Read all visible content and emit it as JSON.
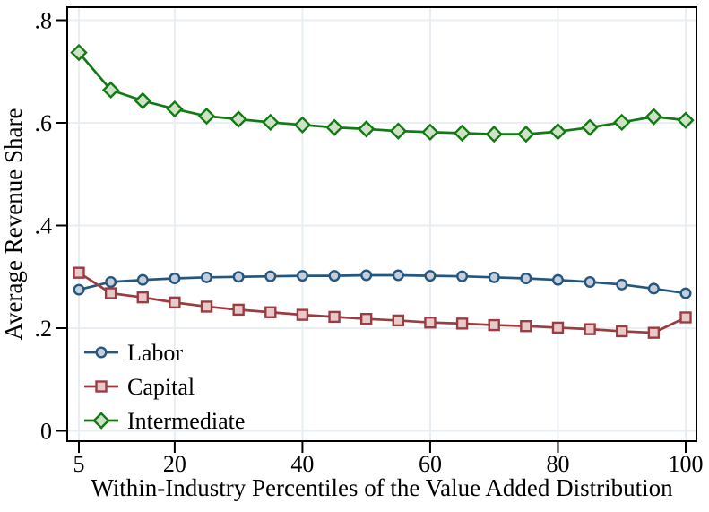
{
  "chart_data": {
    "type": "line",
    "title": "",
    "xlabel": "Within-Industry Percentiles of the Value Added Distribution",
    "ylabel": "Average Revenue Share",
    "x": [
      5,
      10,
      15,
      20,
      25,
      30,
      35,
      40,
      45,
      50,
      55,
      60,
      65,
      70,
      75,
      80,
      85,
      90,
      95,
      100
    ],
    "xticks": [
      5,
      20,
      40,
      60,
      80,
      100
    ],
    "xtick_labels": [
      "5",
      "20",
      "40",
      "60",
      "80",
      "100"
    ],
    "yticks": [
      0,
      0.2,
      0.4,
      0.6,
      0.8
    ],
    "ytick_labels": [
      "0",
      ".2",
      ".4",
      ".6",
      ".8"
    ],
    "xlim": [
      3.2,
      101.7
    ],
    "ylim": [
      -0.02,
      0.827
    ],
    "grid": true,
    "legend_position": "bottom-left-inside",
    "series": [
      {
        "name": "Labor",
        "marker": "circle",
        "line_color": "#25567e",
        "marker_fill": "#c3cede",
        "values": [
          0.275,
          0.29,
          0.294,
          0.297,
          0.299,
          0.3,
          0.301,
          0.302,
          0.302,
          0.303,
          0.303,
          0.302,
          0.301,
          0.299,
          0.297,
          0.294,
          0.29,
          0.285,
          0.277,
          0.268
        ]
      },
      {
        "name": "Capital",
        "marker": "square",
        "line_color": "#9c3c41",
        "marker_fill": "#e7caca",
        "values": [
          0.308,
          0.268,
          0.26,
          0.25,
          0.242,
          0.236,
          0.231,
          0.226,
          0.222,
          0.218,
          0.215,
          0.211,
          0.209,
          0.206,
          0.204,
          0.201,
          0.198,
          0.194,
          0.191,
          0.221
        ]
      },
      {
        "name": "Intermediate",
        "marker": "diamond",
        "line_color": "#127a12",
        "marker_fill": "#cfe2c8",
        "values": [
          0.737,
          0.664,
          0.643,
          0.627,
          0.613,
          0.607,
          0.601,
          0.596,
          0.591,
          0.588,
          0.584,
          0.582,
          0.58,
          0.578,
          0.578,
          0.583,
          0.591,
          0.601,
          0.612,
          0.605
        ]
      }
    ],
    "colors": {
      "grid": "#e8eef1",
      "axis": "#000000",
      "background": "#ffffff"
    }
  }
}
